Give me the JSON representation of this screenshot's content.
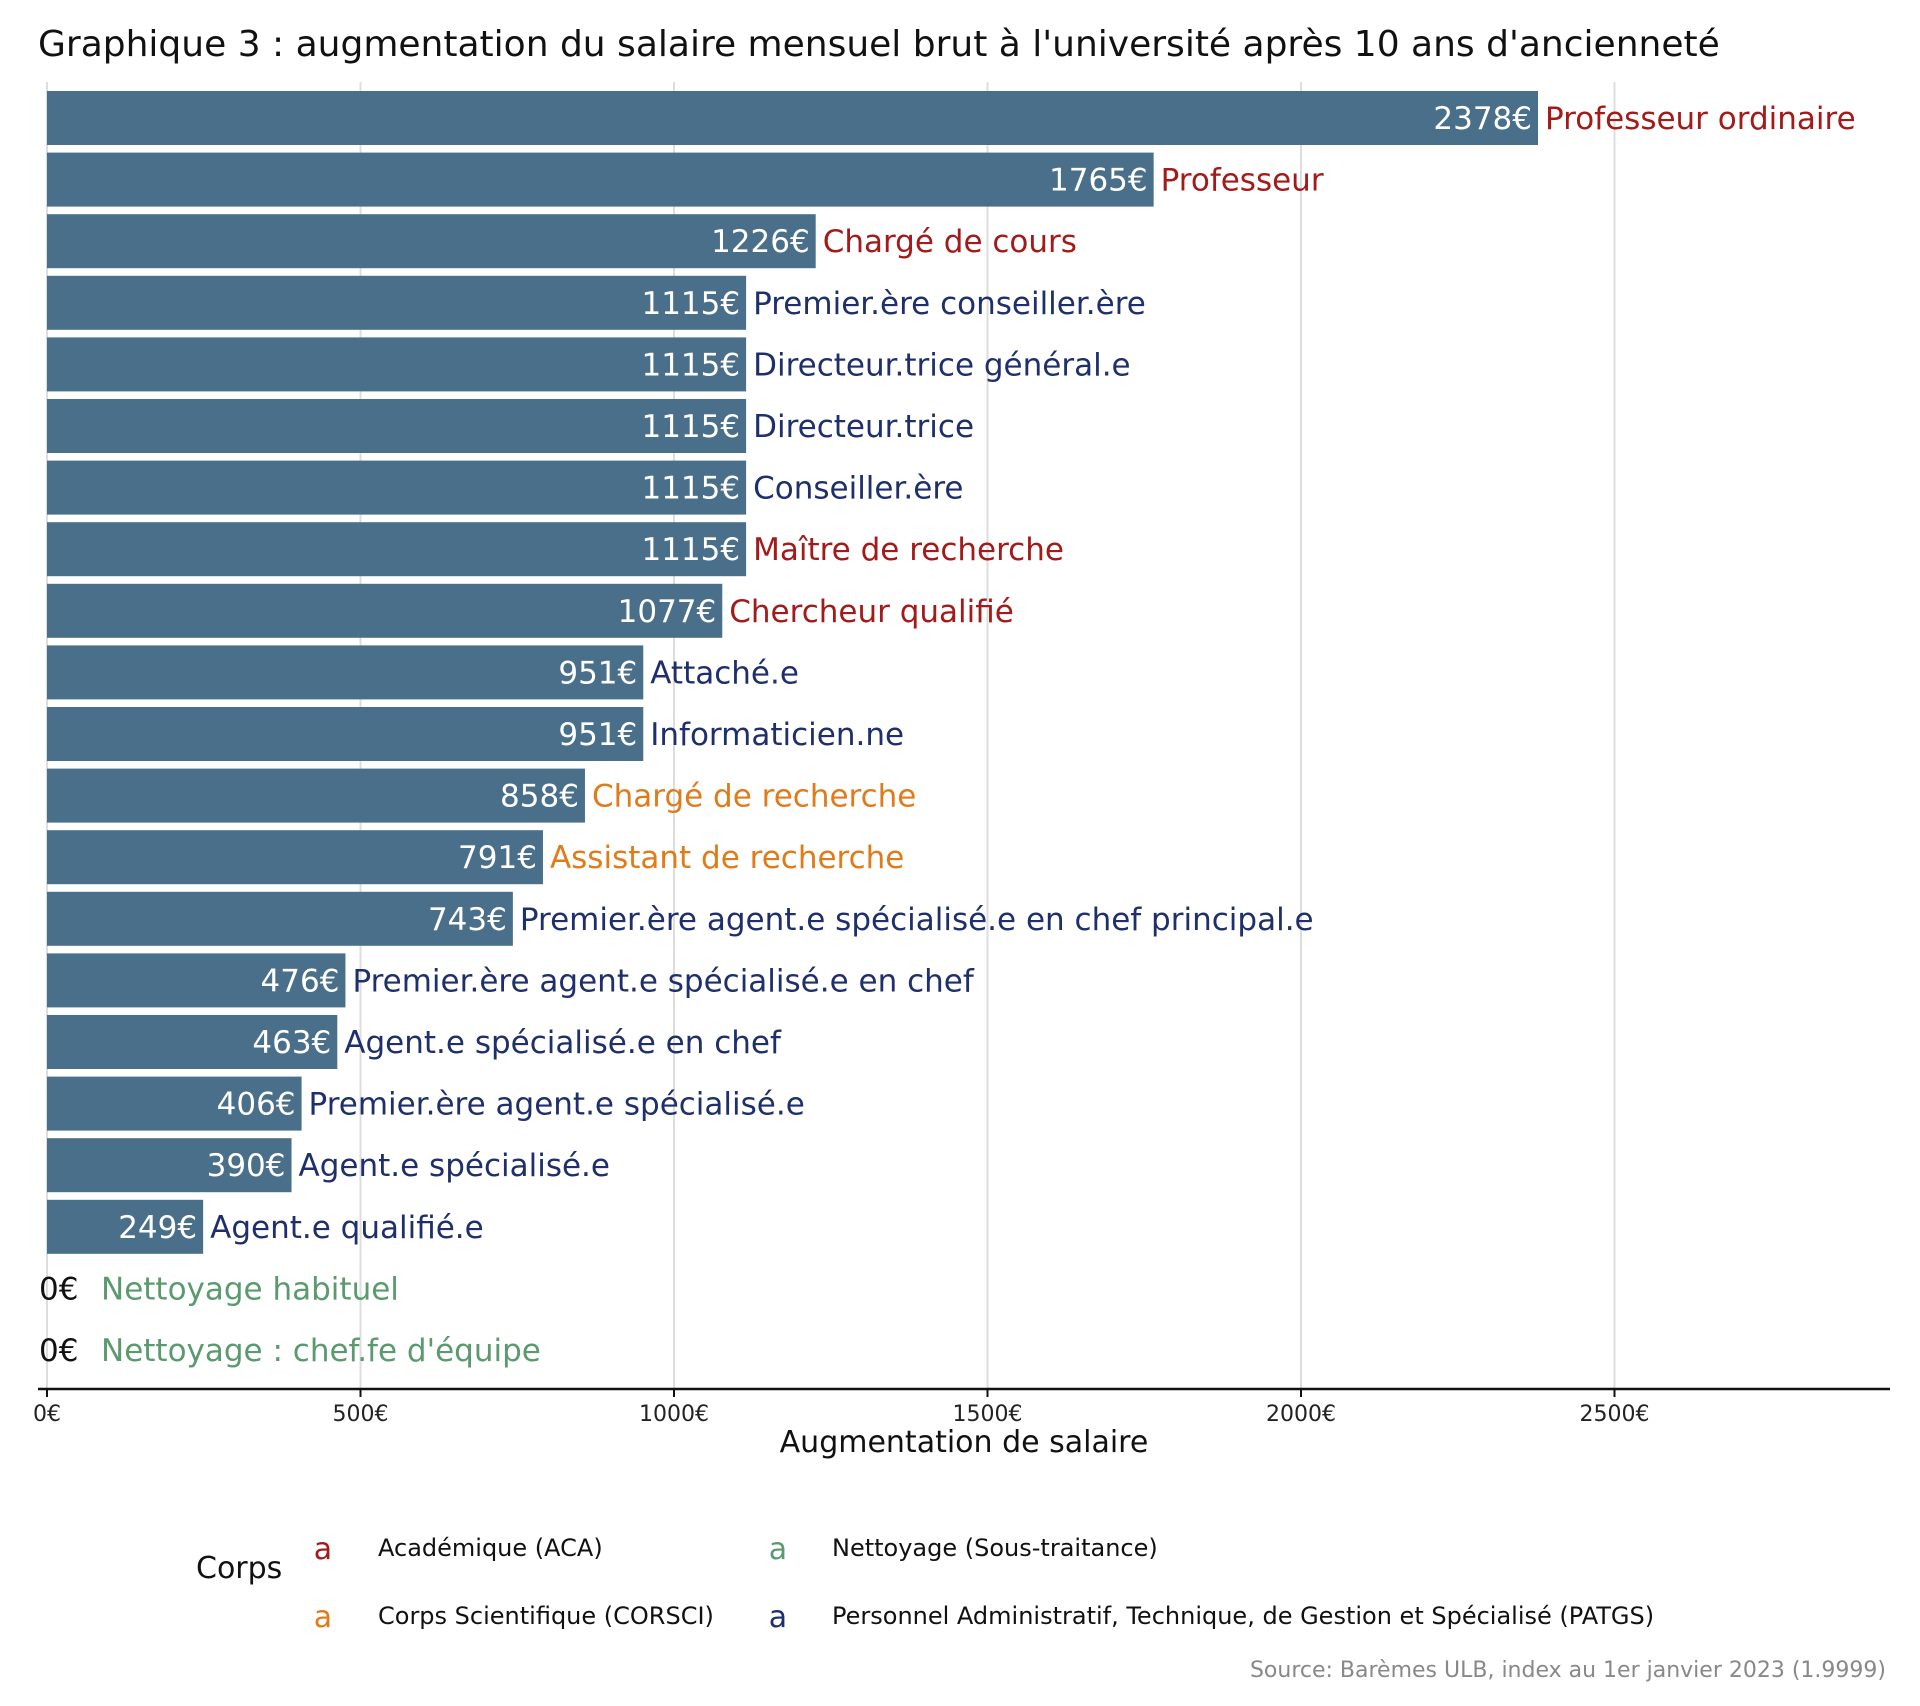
{
  "chart_data": {
    "type": "bar",
    "orientation": "horizontal",
    "title": "Graphique 3 : augmentation du salaire mensuel brut à l'université après 10 ans d'ancienneté",
    "xlabel": "Augmentation de salaire",
    "ylabel": "",
    "xlim": [
      0,
      2940
    ],
    "x_ticks": [
      0,
      500,
      1000,
      1500,
      2000,
      2500
    ],
    "x_tick_labels": [
      "0€",
      "500€",
      "1000€",
      "1500€",
      "2000€",
      "2500€"
    ],
    "grid": "vertical major gridlines",
    "bar_color": "#4a6f8a",
    "value_suffix": "€",
    "categories": [
      "Professeur ordinaire",
      "Professeur",
      "Chargé de cours",
      "Premier.ère conseiller.ère",
      "Directeur.trice général.e",
      "Directeur.trice",
      "Conseiller.ère",
      "Maître de recherche",
      "Chercheur qualifié",
      "Attaché.e",
      "Informaticien.ne",
      "Chargé de recherche",
      "Assistant de recherche",
      "Premier.ère agent.e spécialisé.e en chef principal.e",
      "Premier.ère agent.e spécialisé.e en chef",
      "Agent.e spécialisé.e en chef",
      "Premier.ère agent.e spécialisé.e",
      "Agent.e spécialisé.e",
      "Agent.e qualifié.e",
      "Nettoyage habituel",
      "Nettoyage : chef.fe d'équipe"
    ],
    "values": [
      2378,
      1765,
      1226,
      1115,
      1115,
      1115,
      1115,
      1115,
      1077,
      951,
      951,
      858,
      791,
      743,
      476,
      463,
      406,
      390,
      249,
      0,
      0
    ],
    "value_labels": [
      "2378€",
      "1765€",
      "1226€",
      "1115€",
      "1115€",
      "1115€",
      "1115€",
      "1115€",
      "1077€",
      "951€",
      "951€",
      "858€",
      "791€",
      "743€",
      "476€",
      "463€",
      "406€",
      "390€",
      "249€",
      "0€",
      "0€"
    ],
    "corps": [
      "ACA",
      "ACA",
      "ACA",
      "PATGS",
      "PATGS",
      "PATGS",
      "PATGS",
      "ACA",
      "ACA",
      "PATGS",
      "PATGS",
      "CORSCI",
      "CORSCI",
      "PATGS",
      "PATGS",
      "PATGS",
      "PATGS",
      "PATGS",
      "PATGS",
      "NET",
      "NET"
    ],
    "legend": {
      "title": "Corps",
      "placement": "bottom",
      "key_glyph": "a",
      "entries": [
        {
          "id": "ACA",
          "label": "Académique (ACA)",
          "color": "#a31a1a"
        },
        {
          "id": "NET",
          "label": "Nettoyage (Sous-traitance)",
          "color": "#5a9a6e"
        },
        {
          "id": "CORSCI",
          "label": "Corps Scientifique (CORSCI)",
          "color": "#e07b1a"
        },
        {
          "id": "PATGS",
          "label": "Personnel Administratif, Technique, de Gestion et Spécialisé (PATGS)",
          "color": "#1e2f6b"
        }
      ]
    },
    "caption": "Source: Barèmes ULB, index au 1er janvier 2023 (1.9999)"
  }
}
